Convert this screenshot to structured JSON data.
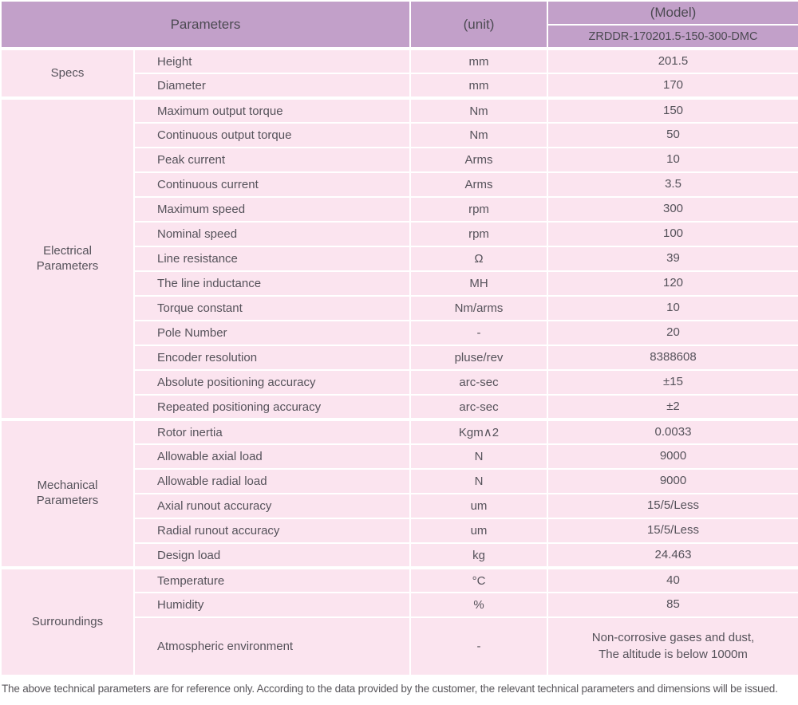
{
  "table": {
    "header": {
      "parameters_label": "Parameters",
      "unit_label": "(unit)",
      "model_label": "(Model)",
      "model_value": "ZRDDR-170201.5-150-300-DMC"
    },
    "groups": [
      {
        "category": "Specs",
        "rows": [
          {
            "name": "Height",
            "unit": "mm",
            "value": "201.5"
          },
          {
            "name": "Diameter",
            "unit": "mm",
            "value": "170"
          }
        ]
      },
      {
        "category": "Electrical",
        "category2": "Parameters",
        "rows": [
          {
            "name": "Maximum output torque",
            "unit": "Nm",
            "value": "150"
          },
          {
            "name": "Continuous output torque",
            "unit": "Nm",
            "value": "50"
          },
          {
            "name": "Peak current",
            "unit": "Arms",
            "value": "10"
          },
          {
            "name": "Continuous current",
            "unit": "Arms",
            "value": "3.5"
          },
          {
            "name": "Maximum speed",
            "unit": "rpm",
            "value": "300"
          },
          {
            "name": "Nominal speed",
            "unit": "rpm",
            "value": "100"
          },
          {
            "name": "Line resistance",
            "unit": "Ω",
            "value": "39"
          },
          {
            "name": "The line inductance",
            "unit": "MH",
            "value": "120"
          },
          {
            "name": "Torque constant",
            "unit": "Nm/arms",
            "value": "10"
          },
          {
            "name": "Pole Number",
            "unit": "-",
            "value": "20"
          },
          {
            "name": "Encoder resolution",
            "unit": "pluse/rev",
            "value": "8388608"
          },
          {
            "name": "Absolute positioning accuracy",
            "unit": "arc-sec",
            "value": "±15"
          },
          {
            "name": "Repeated positioning accuracy",
            "unit": "arc-sec",
            "value": "±2"
          }
        ]
      },
      {
        "category": "Mechanical",
        "category2": "Parameters",
        "rows": [
          {
            "name": "Rotor inertia",
            "unit": "Kgm∧2",
            "value": "0.0033"
          },
          {
            "name": "Allowable axial load",
            "unit": "N",
            "value": "9000"
          },
          {
            "name": "Allowable radial load",
            "unit": "N",
            "value": "9000"
          },
          {
            "name": "Axial runout accuracy",
            "unit": "um",
            "value": "15/5/Less"
          },
          {
            "name": "Radial runout accuracy",
            "unit": "um",
            "value": "15/5/Less"
          },
          {
            "name": "Design load",
            "unit": "kg",
            "value": "24.463"
          }
        ]
      },
      {
        "category": "Surroundings",
        "rows": [
          {
            "name": "Temperature",
            "unit": "°C",
            "value": "40"
          },
          {
            "name": "Humidity",
            "unit": "%",
            "value": "85"
          },
          {
            "name": "Atmospheric environment",
            "unit": "-",
            "value": "Non-corrosive gases and dust,",
            "value2": "The altitude is below 1000m"
          }
        ]
      }
    ]
  },
  "footnote": "The above technical parameters are for reference only. According to the data provided by the customer, the relevant technical parameters and dimensions will be issued.",
  "colors": {
    "header_bg": "#c2a0c9",
    "row_bg": "#fbe4ef",
    "grid": "#ffffff",
    "text": "#55525a"
  }
}
